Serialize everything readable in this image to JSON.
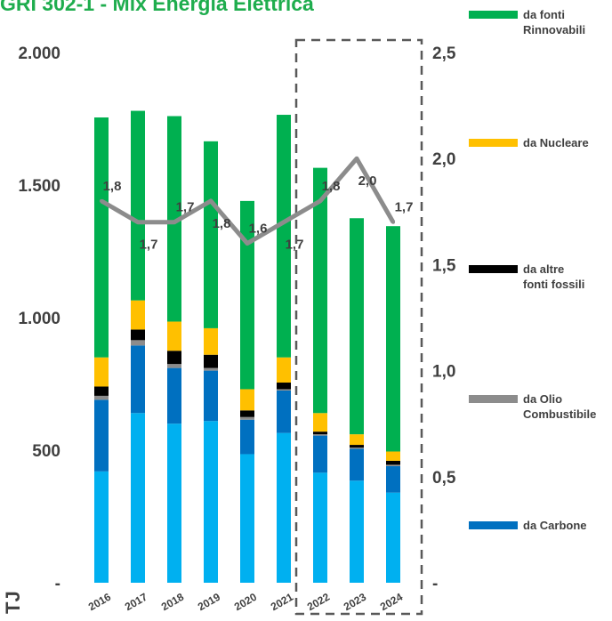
{
  "chart_data": {
    "type": "bar",
    "title": "GRI 302-1 - Mix Energia Elettrica",
    "ylabel": "TJ",
    "categories": [
      "2016",
      "2017",
      "2018",
      "2019",
      "2020",
      "2021",
      "2022",
      "2023",
      "2024"
    ],
    "ylim": [
      0,
      2000
    ],
    "yticks": [
      "-",
      "500",
      "1.000",
      "1.500",
      "2.000"
    ],
    "y2lim": [
      0,
      2.5
    ],
    "y2ticks": [
      "-",
      "0,5",
      "1,0",
      "1,5",
      "2,0",
      "2,5"
    ],
    "stacked": true,
    "series": [
      {
        "name": "da Carbone",
        "color": "#0070c0",
        "values": [
          270,
          255,
          210,
          190,
          130,
          160,
          140,
          120,
          100
        ]
      },
      {
        "name": "da Olio Combustibile",
        "color": "#8c8c8c",
        "values": [
          15,
          20,
          15,
          10,
          10,
          5,
          5,
          5,
          5
        ]
      },
      {
        "name": "da altre fonti fossili",
        "color": "#000000",
        "values": [
          35,
          40,
          50,
          50,
          25,
          25,
          10,
          10,
          15
        ]
      },
      {
        "name": "da Nucleare",
        "color": "#ffc000",
        "values": [
          110,
          110,
          110,
          100,
          80,
          95,
          70,
          40,
          35
        ]
      },
      {
        "name": "da fonti Rinnovabili",
        "color": "#00b050",
        "values": [
          905,
          715,
          775,
          705,
          710,
          915,
          925,
          815,
          850
        ]
      }
    ],
    "base_series": {
      "color": "#00b0f0",
      "values": [
        420,
        640,
        600,
        610,
        485,
        565,
        415,
        385,
        340
      ]
    },
    "line_series": {
      "name": "da Olio Combustibile",
      "color": "#8c8c8c",
      "axis": "right",
      "values": [
        1.8,
        1.7,
        1.7,
        1.8,
        1.6,
        1.7,
        1.8,
        2.0,
        1.7
      ],
      "labels": [
        "1,8",
        "1,7",
        "1,7",
        "1,8",
        "1,6",
        "1,7",
        "1,8",
        "2,0",
        "1,7"
      ]
    },
    "legend_position": "right",
    "highlight_box": [
      "2022",
      "2024"
    ]
  }
}
